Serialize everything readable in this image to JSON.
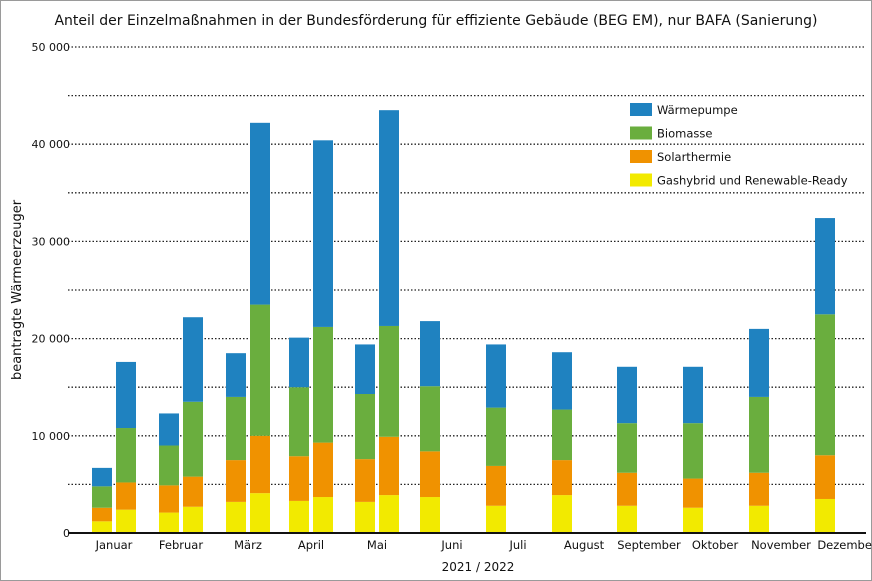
{
  "chart_data": {
    "type": "bar",
    "stacked": true,
    "title": "Anteil der Einzelmaßnahmen in der Bundesförderung für effiziente Gebäude (BEG EM), nur BAFA (Sanierung)",
    "xlabel": "2021 / 2022",
    "ylabel": "beantragte Wärmeerzeuger",
    "ylim": [
      0,
      50000
    ],
    "yticks": [
      0,
      10000,
      20000,
      30000,
      40000,
      50000
    ],
    "ytick_labels": [
      "0",
      "10 000",
      "20 000",
      "30 000",
      "40 000",
      "50 000"
    ],
    "grid": "horizontal dotted every 5000",
    "legend_position": "top-right",
    "categories": [
      "Januar",
      "Februar",
      "März",
      "April",
      "Mai",
      "Juni",
      "Juli",
      "August",
      "September",
      "Oktober",
      "November",
      "Dezember"
    ],
    "series": [
      {
        "name": "Gashybrid und Renewable-Ready",
        "color": "#f2ea00"
      },
      {
        "name": "Solarthermie",
        "color": "#f09200"
      },
      {
        "name": "Biomasse",
        "color": "#6aae3e"
      },
      {
        "name": "Wärmepumpe",
        "color": "#1f82c0"
      }
    ],
    "bars": [
      {
        "month": "Januar",
        "values": [
          [
            1200,
            1400,
            2200,
            1900
          ],
          [
            2400,
            2800,
            5600,
            6800
          ]
        ]
      },
      {
        "month": "Februar",
        "values": [
          [
            2100,
            2800,
            4100,
            3300
          ],
          [
            2700,
            3100,
            7700,
            8700
          ]
        ]
      },
      {
        "month": "März",
        "values": [
          [
            3200,
            4300,
            6500,
            4500
          ],
          [
            4100,
            5900,
            13500,
            18700
          ]
        ]
      },
      {
        "month": "April",
        "values": [
          [
            3300,
            4600,
            7100,
            5100
          ],
          [
            3700,
            5600,
            11900,
            19200
          ]
        ]
      },
      {
        "month": "Mai",
        "values": [
          [
            3200,
            4400,
            6700,
            5100
          ],
          [
            3900,
            6000,
            11400,
            22200
          ]
        ]
      },
      {
        "month": "Juni",
        "values": [
          [
            3700,
            4700,
            6700,
            6700
          ]
        ]
      },
      {
        "month": "Juli",
        "values": [
          [
            2800,
            4100,
            6000,
            6500
          ]
        ]
      },
      {
        "month": "August",
        "values": [
          [
            3900,
            3600,
            5200,
            5900
          ]
        ]
      },
      {
        "month": "September",
        "values": [
          [
            2800,
            3400,
            5100,
            5800
          ]
        ]
      },
      {
        "month": "Oktober",
        "values": [
          [
            2600,
            3000,
            5700,
            5800
          ]
        ]
      },
      {
        "month": "November",
        "values": [
          [
            2800,
            3400,
            7800,
            7000
          ]
        ]
      },
      {
        "month": "Dezember",
        "values": [
          [
            3500,
            4500,
            14500,
            9900
          ]
        ]
      }
    ]
  }
}
